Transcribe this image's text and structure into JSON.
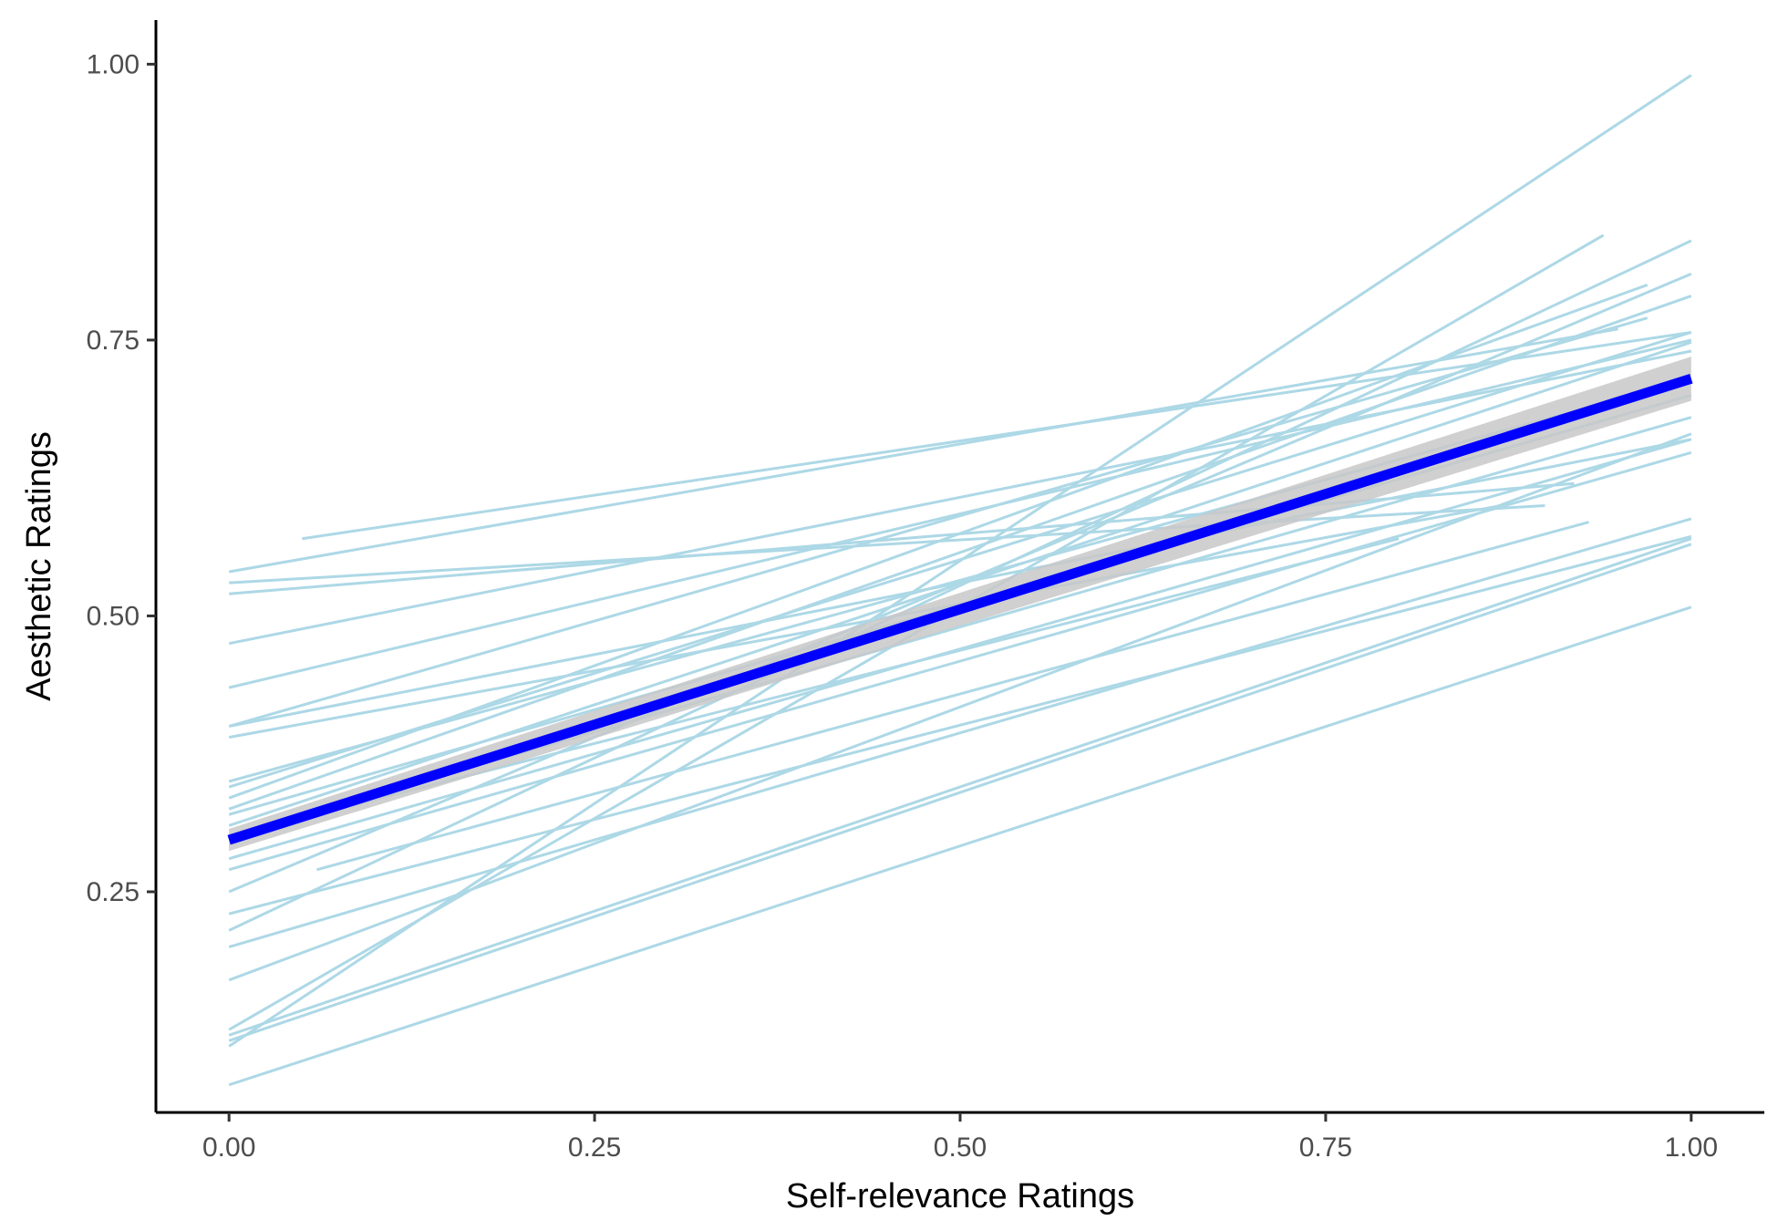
{
  "chart_data": {
    "type": "line",
    "xlabel": "Self-relevance Ratings",
    "ylabel": "Aesthetic Ratings",
    "xlim": [
      -0.05,
      1.05
    ],
    "ylim": [
      0.05,
      1.04
    ],
    "x_ticks": [
      0.0,
      0.25,
      0.5,
      0.75,
      1.0
    ],
    "x_tick_labels": [
      "0.00",
      "0.25",
      "0.50",
      "0.75",
      "1.00"
    ],
    "y_ticks": [
      0.25,
      0.5,
      0.75,
      1.0
    ],
    "y_tick_labels": [
      "0.25",
      "0.50",
      "0.75",
      "1.00"
    ],
    "grid": false,
    "legend": "none",
    "colors": {
      "individual": "#add8e6",
      "fit": "#0000ff",
      "ci_band": "#c8c8c8",
      "axis": "#000000"
    },
    "fit_line": {
      "x": [
        0.0,
        1.0
      ],
      "y": [
        0.297,
        0.715
      ],
      "ci_halfwidth_start": 0.01,
      "ci_halfwidth_end": 0.02
    },
    "individual_lines": [
      {
        "x": [
          0.0,
          1.0
        ],
        "y": [
          0.075,
          0.508
        ]
      },
      {
        "x": [
          0.0,
          1.0
        ],
        "y": [
          0.11,
          0.99
        ]
      },
      {
        "x": [
          0.0,
          1.0
        ],
        "y": [
          0.115,
          0.565
        ]
      },
      {
        "x": [
          0.0,
          1.0
        ],
        "y": [
          0.12,
          0.57
        ]
      },
      {
        "x": [
          0.0,
          0.94
        ],
        "y": [
          0.125,
          0.845
        ]
      },
      {
        "x": [
          0.0,
          1.0
        ],
        "y": [
          0.17,
          0.665
        ]
      },
      {
        "x": [
          0.0,
          1.0
        ],
        "y": [
          0.2,
          0.588
        ]
      },
      {
        "x": [
          0.0,
          1.0
        ],
        "y": [
          0.215,
          0.84
        ]
      },
      {
        "x": [
          0.0,
          1.0
        ],
        "y": [
          0.25,
          0.81
        ]
      },
      {
        "x": [
          0.0,
          1.0
        ],
        "y": [
          0.27,
          0.648
        ]
      },
      {
        "x": [
          0.0,
          1.0
        ],
        "y": [
          0.3,
          0.68
        ]
      },
      {
        "x": [
          0.0,
          1.0
        ],
        "y": [
          0.31,
          0.748
        ]
      },
      {
        "x": [
          0.0,
          1.0
        ],
        "y": [
          0.325,
          0.79
        ]
      },
      {
        "x": [
          0.0,
          0.97
        ],
        "y": [
          0.335,
          0.8
        ]
      },
      {
        "x": [
          0.0,
          1.0
        ],
        "y": [
          0.345,
          0.757
        ]
      },
      {
        "x": [
          0.0,
          1.0
        ],
        "y": [
          0.4,
          0.66
        ]
      },
      {
        "x": [
          0.0,
          0.97
        ],
        "y": [
          0.4,
          0.77
        ]
      },
      {
        "x": [
          0.0,
          1.0
        ],
        "y": [
          0.435,
          0.75
        ]
      },
      {
        "x": [
          0.0,
          1.0
        ],
        "y": [
          0.475,
          0.74
        ]
      },
      {
        "x": [
          0.0,
          0.92
        ],
        "y": [
          0.52,
          0.62
        ]
      },
      {
        "x": [
          0.0,
          0.9
        ],
        "y": [
          0.53,
          0.6
        ]
      },
      {
        "x": [
          0.0,
          0.95
        ],
        "y": [
          0.54,
          0.76
        ]
      },
      {
        "x": [
          0.05,
          1.0
        ],
        "y": [
          0.57,
          0.757
        ]
      },
      {
        "x": [
          0.06,
          0.93
        ],
        "y": [
          0.27,
          0.585
        ]
      },
      {
        "x": [
          0.0,
          1.0
        ],
        "y": [
          0.23,
          0.572
        ]
      },
      {
        "x": [
          0.0,
          0.87
        ],
        "y": [
          0.39,
          0.6
        ]
      },
      {
        "x": [
          0.0,
          1.0
        ],
        "y": [
          0.28,
          0.66
        ]
      },
      {
        "x": [
          0.0,
          0.96
        ],
        "y": [
          0.35,
          0.7
        ]
      },
      {
        "x": [
          0.0,
          0.8
        ],
        "y": [
          0.3,
          0.57
        ]
      },
      {
        "x": [
          0.0,
          1.0
        ],
        "y": [
          0.32,
          0.7
        ]
      }
    ]
  }
}
